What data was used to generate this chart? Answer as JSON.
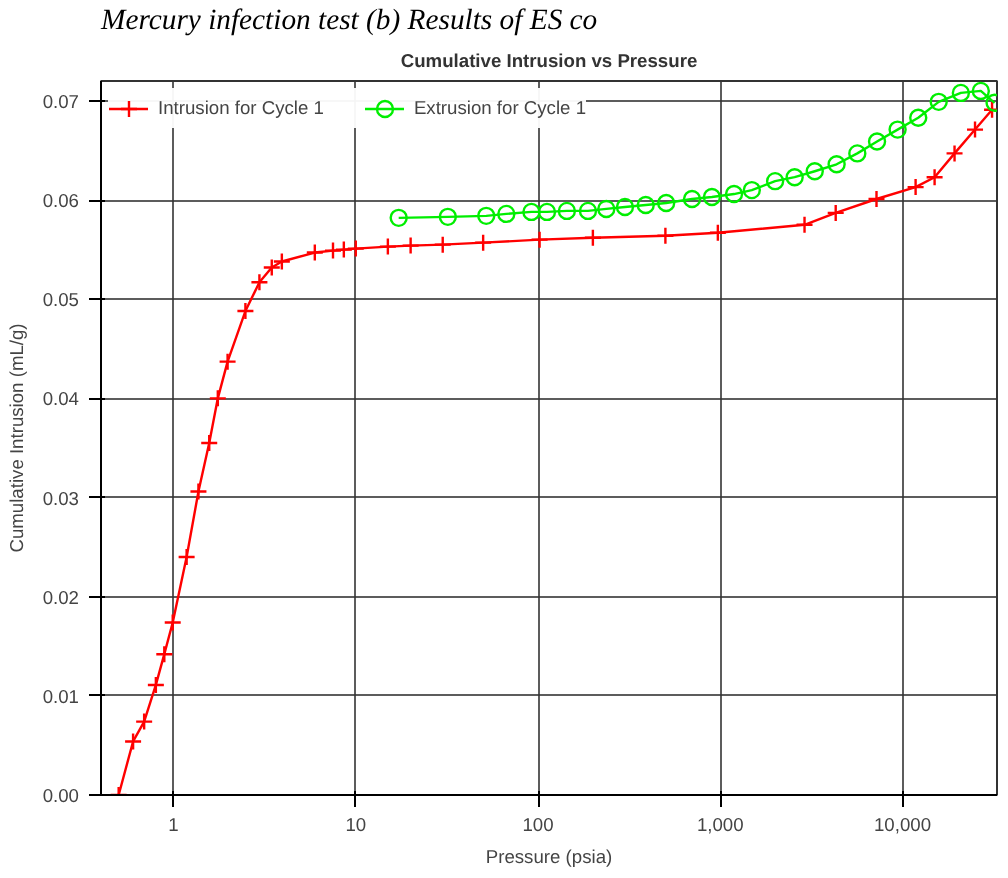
{
  "chart_data": {
    "type": "line",
    "title": "Cumulative Intrusion vs Pressure",
    "xlabel": "Pressure (psia)",
    "ylabel": "Cumulative Intrusion (mL/g)",
    "annotations": [
      "Mercury infection test",
      "(b) Results of ES co"
    ],
    "log": "x",
    "grid": true,
    "legend": "top left",
    "line_style": "solid",
    "xlim": [
      0.4,
      33000
    ],
    "ylim": [
      0,
      0.072
    ],
    "xticks": [
      1,
      10,
      100,
      {
        "value": 1000,
        "label": "1,000"
      },
      {
        "value": 10000,
        "label": "10,000"
      }
    ],
    "yticks": [
      {
        "value": 0,
        "label": "0.00"
      },
      0.01,
      0.02,
      0.03,
      0.04,
      0.05,
      0.06,
      0.07
    ],
    "series": [
      {
        "name": "Intrusion for Cycle 1",
        "color": "#ff0000",
        "marker": "cross",
        "x": [
          0.5,
          0.6,
          0.69,
          0.8,
          0.89,
          0.99,
          1.18,
          1.37,
          1.57,
          1.75,
          1.98,
          2.48,
          2.96,
          3.46,
          3.93,
          5.96,
          7.5,
          8.6,
          10,
          15,
          20,
          30,
          50,
          102,
          200,
          500,
          970,
          2900,
          4300,
          7200,
          11800,
          15000,
          19300,
          25000,
          31000
        ],
        "values": [
          0,
          0.0054,
          0.0074,
          0.0111,
          0.0142,
          0.0174,
          0.024,
          0.0306,
          0.0355,
          0.04,
          0.0437,
          0.0488,
          0.0517,
          0.0532,
          0.0538,
          0.0547,
          0.0549,
          0.055,
          0.0551,
          0.0553,
          0.0554,
          0.0555,
          0.0557,
          0.056,
          0.0562,
          0.0564,
          0.0567,
          0.0575,
          0.0587,
          0.0601,
          0.0613,
          0.0623,
          0.0647,
          0.0671,
          0.0691
        ]
      },
      {
        "name": "Extrusion for Cycle 1",
        "color": "#00ee00",
        "marker": "circle",
        "x": [
          17.2,
          32,
          52,
          67,
          92,
          112,
          144,
          188,
          237,
          300,
          390,
          505,
          700,
          900,
          1190,
          1490,
          2000,
          2560,
          3300,
          4350,
          5650,
          7250,
          9400,
          12200,
          15800,
          20900,
          26900,
          32000
        ],
        "values": [
          0.0582,
          0.0583,
          0.0584,
          0.0586,
          0.0588,
          0.0588,
          0.0589,
          0.0589,
          0.0591,
          0.0593,
          0.0595,
          0.0597,
          0.0601,
          0.0603,
          0.0606,
          0.061,
          0.0619,
          0.0623,
          0.0629,
          0.0636,
          0.0647,
          0.0659,
          0.0671,
          0.0683,
          0.0699,
          0.0708,
          0.071,
          0.0698
        ]
      }
    ]
  }
}
